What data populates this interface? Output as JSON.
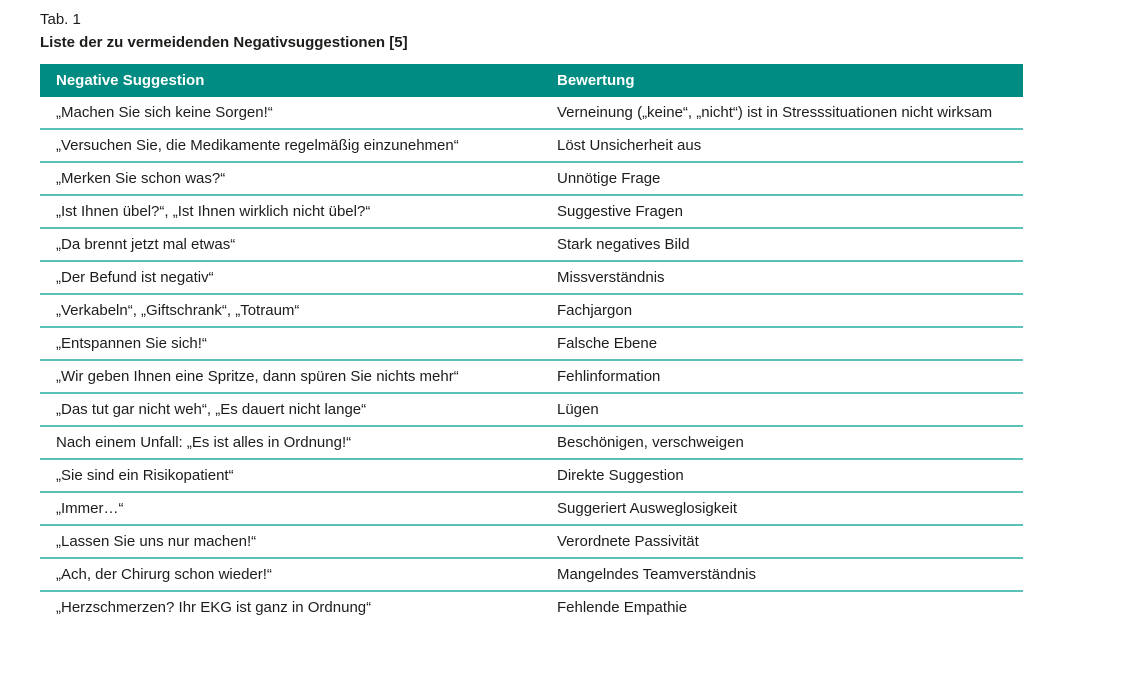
{
  "caption": {
    "label": "Tab. 1",
    "title": "Liste der zu vermeidenden Negativsuggestionen [5]"
  },
  "table": {
    "columns": [
      "Negative Suggestion",
      "Bewertung"
    ],
    "rows": [
      {
        "suggestion": "„Machen Sie sich keine Sorgen!“",
        "bewertung": "Verneinung („keine“, „nicht“) ist in Stresssituationen nicht wirksam"
      },
      {
        "suggestion": "„Versuchen Sie, die Medikamente regelmäßig einzunehmen“",
        "bewertung": "Löst Unsicherheit aus"
      },
      {
        "suggestion": "„Merken Sie schon was?“",
        "bewertung": "Unnötige Frage"
      },
      {
        "suggestion": "„Ist Ihnen übel?“, „Ist Ihnen wirklich nicht übel?“",
        "bewertung": "Suggestive Fragen"
      },
      {
        "suggestion": "„Da brennt jetzt mal etwas“",
        "bewertung": "Stark negatives Bild"
      },
      {
        "suggestion": "„Der Befund ist negativ“",
        "bewertung": "Missverständnis"
      },
      {
        "suggestion": "„Verkabeln“, „Giftschrank“, „Totraum“",
        "bewertung": "Fachjargon"
      },
      {
        "suggestion": "„Entspannen Sie sich!“",
        "bewertung": "Falsche Ebene"
      },
      {
        "suggestion": "„Wir geben Ihnen eine Spritze, dann spüren Sie nichts mehr“",
        "bewertung": "Fehlinformation"
      },
      {
        "suggestion": "„Das tut gar nicht weh“, „Es dauert nicht lange“",
        "bewertung": "Lügen"
      },
      {
        "suggestion": "Nach einem Unfall: „Es ist alles in Ordnung!“",
        "bewertung": "Beschönigen, verschweigen"
      },
      {
        "suggestion": "„Sie sind ein Risikopatient“",
        "bewertung": "Direkte Suggestion"
      },
      {
        "suggestion": "„Immer…“",
        "bewertung": "Suggeriert Ausweglosigkeit"
      },
      {
        "suggestion": "„Lassen Sie uns nur machen!“",
        "bewertung": "Verordnete Passivität"
      },
      {
        "suggestion": "„Ach, der Chirurg schon wieder!“",
        "bewertung": "Mangelndes Teamverständnis"
      },
      {
        "suggestion": "„Herzschmerzen? Ihr EKG ist ganz in Ordnung“",
        "bewertung": "Fehlende Empathie"
      }
    ]
  },
  "colors": {
    "header_background": "#008c82",
    "header_text": "#ffffff",
    "row_divider": "#5bc0b8",
    "body_text": "#1d1d1b"
  }
}
